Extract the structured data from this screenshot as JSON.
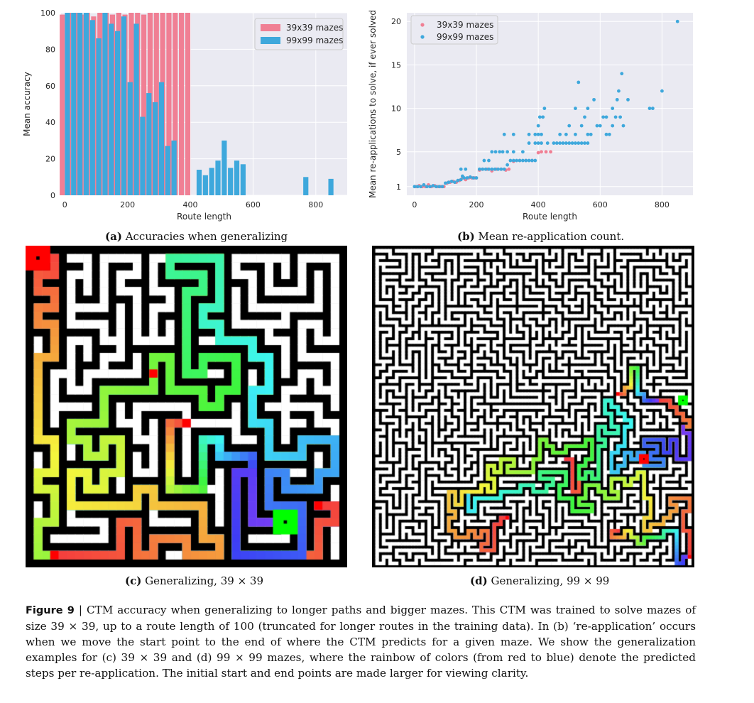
{
  "chart_data": [
    {
      "type": "bar",
      "panel": "(a)",
      "xlabel": "Route length",
      "ylabel": "Mean accuracy",
      "xlim": [
        -12,
        900
      ],
      "ylim": [
        0,
        100
      ],
      "xticks": [
        0,
        200,
        400,
        600,
        800
      ],
      "yticks": [
        0,
        20,
        40,
        60,
        80,
        100
      ],
      "grid": true,
      "legend_position": "top-right",
      "series": [
        {
          "name": "39x39 mazes",
          "color": "#f07f94",
          "x": [
            0,
            20,
            40,
            60,
            80,
            100,
            120,
            140,
            160,
            180,
            200,
            220,
            240,
            260,
            280,
            300,
            320,
            340,
            360,
            380,
            400
          ],
          "values": [
            99,
            100,
            100,
            99,
            100,
            98,
            100,
            100,
            99,
            100,
            99,
            100,
            100,
            99,
            100,
            100,
            100,
            100,
            100,
            100,
            100
          ]
        },
        {
          "name": "99x99 mazes",
          "color": "#3ea8dc",
          "x": [
            0,
            20,
            40,
            60,
            80,
            100,
            120,
            140,
            160,
            180,
            200,
            220,
            240,
            260,
            280,
            300,
            320,
            340,
            360,
            380,
            400,
            420,
            440,
            460,
            480,
            500,
            520,
            540,
            560,
            580,
            600,
            620,
            640,
            660,
            680,
            700,
            720,
            740,
            760,
            780,
            800,
            820,
            840
          ],
          "values": [
            100,
            100,
            100,
            100,
            96,
            86,
            100,
            94,
            90,
            98,
            62,
            94,
            43,
            56,
            51,
            62,
            27,
            30,
            null,
            null,
            null,
            14,
            11,
            15,
            19,
            30,
            15,
            19,
            17,
            null,
            null,
            null,
            null,
            null,
            null,
            null,
            null,
            null,
            10,
            null,
            null,
            null,
            9
          ]
        }
      ]
    },
    {
      "type": "scatter",
      "panel": "(b)",
      "xlabel": "Route length",
      "ylabel": "Mean re-applications to solve, if ever solved",
      "xlim": [
        -25,
        900
      ],
      "ylim": [
        0,
        21
      ],
      "xticks": [
        0,
        200,
        400,
        600,
        800
      ],
      "yticks": [
        1,
        5,
        10,
        15,
        20
      ],
      "grid": true,
      "legend_position": "top-left",
      "series": [
        {
          "name": "39x39 mazes",
          "color": "#f07f94",
          "points": [
            [
              5,
              1
            ],
            [
              15,
              1.1
            ],
            [
              25,
              1
            ],
            [
              35,
              1
            ],
            [
              45,
              1.2
            ],
            [
              55,
              1
            ],
            [
              65,
              1.1
            ],
            [
              75,
              1
            ],
            [
              85,
              1
            ],
            [
              95,
              1
            ],
            [
              105,
              1.4
            ],
            [
              115,
              1.5
            ],
            [
              125,
              1.6
            ],
            [
              135,
              1.5
            ],
            [
              145,
              1.7
            ],
            [
              155,
              2
            ],
            [
              165,
              1.8
            ],
            [
              175,
              2
            ],
            [
              185,
              2
            ],
            [
              195,
              2
            ],
            [
              210,
              2.9
            ],
            [
              220,
              3
            ],
            [
              235,
              3
            ],
            [
              250,
              2.8
            ],
            [
              265,
              3
            ],
            [
              280,
              3
            ],
            [
              295,
              2.9
            ],
            [
              305,
              3
            ],
            [
              320,
              3.9
            ],
            [
              340,
              4
            ],
            [
              360,
              4
            ],
            [
              380,
              4
            ],
            [
              400,
              4.9
            ],
            [
              410,
              5
            ],
            [
              425,
              5
            ],
            [
              440,
              5
            ]
          ]
        },
        {
          "name": "99x99 mazes",
          "color": "#3ea8dc",
          "points": [
            [
              0,
              1
            ],
            [
              10,
              1
            ],
            [
              20,
              1
            ],
            [
              30,
              1.2
            ],
            [
              40,
              1
            ],
            [
              50,
              1
            ],
            [
              60,
              1.1
            ],
            [
              70,
              1
            ],
            [
              80,
              1
            ],
            [
              90,
              1
            ],
            [
              100,
              1.4
            ],
            [
              110,
              1.5
            ],
            [
              120,
              1.6
            ],
            [
              130,
              1.5
            ],
            [
              140,
              1.7
            ],
            [
              150,
              1.8
            ],
            [
              160,
              2
            ],
            [
              170,
              2
            ],
            [
              180,
              2.1
            ],
            [
              190,
              2
            ],
            [
              200,
              2
            ],
            [
              150,
              3
            ],
            [
              165,
              3
            ],
            [
              155,
              2.2
            ],
            [
              210,
              3
            ],
            [
              220,
              3
            ],
            [
              230,
              3
            ],
            [
              240,
              3
            ],
            [
              250,
              3
            ],
            [
              260,
              3
            ],
            [
              270,
              3
            ],
            [
              280,
              3
            ],
            [
              290,
              3
            ],
            [
              225,
              4
            ],
            [
              240,
              4
            ],
            [
              250,
              5
            ],
            [
              262,
              5
            ],
            [
              275,
              5
            ],
            [
              285,
              5
            ],
            [
              300,
              3.5
            ],
            [
              310,
              4
            ],
            [
              320,
              4
            ],
            [
              330,
              4
            ],
            [
              340,
              4
            ],
            [
              350,
              4
            ],
            [
              360,
              4
            ],
            [
              370,
              4
            ],
            [
              380,
              4
            ],
            [
              390,
              4
            ],
            [
              300,
              5
            ],
            [
              320,
              5
            ],
            [
              350,
              5
            ],
            [
              370,
              6
            ],
            [
              390,
              6
            ],
            [
              400,
              6
            ],
            [
              410,
              6
            ],
            [
              290,
              7
            ],
            [
              320,
              7
            ],
            [
              370,
              7
            ],
            [
              390,
              7
            ],
            [
              400,
              7
            ],
            [
              410,
              7
            ],
            [
              405,
              9
            ],
            [
              415,
              9
            ],
            [
              420,
              10
            ],
            [
              400,
              8
            ],
            [
              430,
              6
            ],
            [
              450,
              6
            ],
            [
              460,
              6
            ],
            [
              470,
              6
            ],
            [
              480,
              6
            ],
            [
              490,
              6
            ],
            [
              500,
              6
            ],
            [
              510,
              6
            ],
            [
              520,
              6
            ],
            [
              530,
              6
            ],
            [
              540,
              6
            ],
            [
              550,
              6
            ],
            [
              560,
              6
            ],
            [
              470,
              7
            ],
            [
              490,
              7
            ],
            [
              500,
              8
            ],
            [
              520,
              7
            ],
            [
              540,
              8
            ],
            [
              560,
              7
            ],
            [
              570,
              7
            ],
            [
              590,
              8
            ],
            [
              600,
              8
            ],
            [
              550,
              9
            ],
            [
              560,
              10
            ],
            [
              520,
              10
            ],
            [
              580,
              11
            ],
            [
              620,
              7
            ],
            [
              630,
              7
            ],
            [
              640,
              8
            ],
            [
              650,
              9
            ],
            [
              655,
              11
            ],
            [
              660,
              12
            ],
            [
              665,
              9
            ],
            [
              675,
              8
            ],
            [
              610,
              9
            ],
            [
              620,
              9
            ],
            [
              640,
              10
            ],
            [
              670,
              14
            ],
            [
              690,
              11
            ],
            [
              760,
              10
            ],
            [
              770,
              10
            ],
            [
              800,
              12
            ],
            [
              850,
              20
            ],
            [
              530,
              13
            ]
          ]
        }
      ]
    }
  ],
  "captions": {
    "a_label": "(a)",
    "a_text": "Accuracies when generalizing",
    "b_label": "(b)",
    "b_text": "Mean re-application count.",
    "c_label": "(c)",
    "c_text": "Generalizing, 39 × 39",
    "d_label": "(d)",
    "d_text": "Generalizing, 99 × 99"
  },
  "figure_caption": {
    "label": "Figure 9",
    "separator": " | ",
    "text": "CTM accuracy when generalizing to longer paths and bigger mazes. This CTM was trained to solve mazes of size 39 × 39, up to a route length of 100 (truncated for longer routes in the training data). In (b) ‘re-application’ occurs when we move the start point to the end of where the CTM predicts for a given maze. We show the generalization examples for (c) 39 × 39 and (d) 99 × 99 mazes, where the rainbow of colors (from red to blue) denote the predicted steps per re-application. The initial start and end points are made larger for viewing clarity."
  },
  "maze_images": {
    "c": {
      "grid_size": 39,
      "background": "#000000",
      "corridor": "#ffffff",
      "start_color": "#ff0000",
      "end_color": "#00ff00"
    },
    "d": {
      "grid_size": 99,
      "background": "#000000",
      "corridor": "#ffffff",
      "start_color": "#ff0000",
      "end_color": "#00ff00"
    }
  }
}
